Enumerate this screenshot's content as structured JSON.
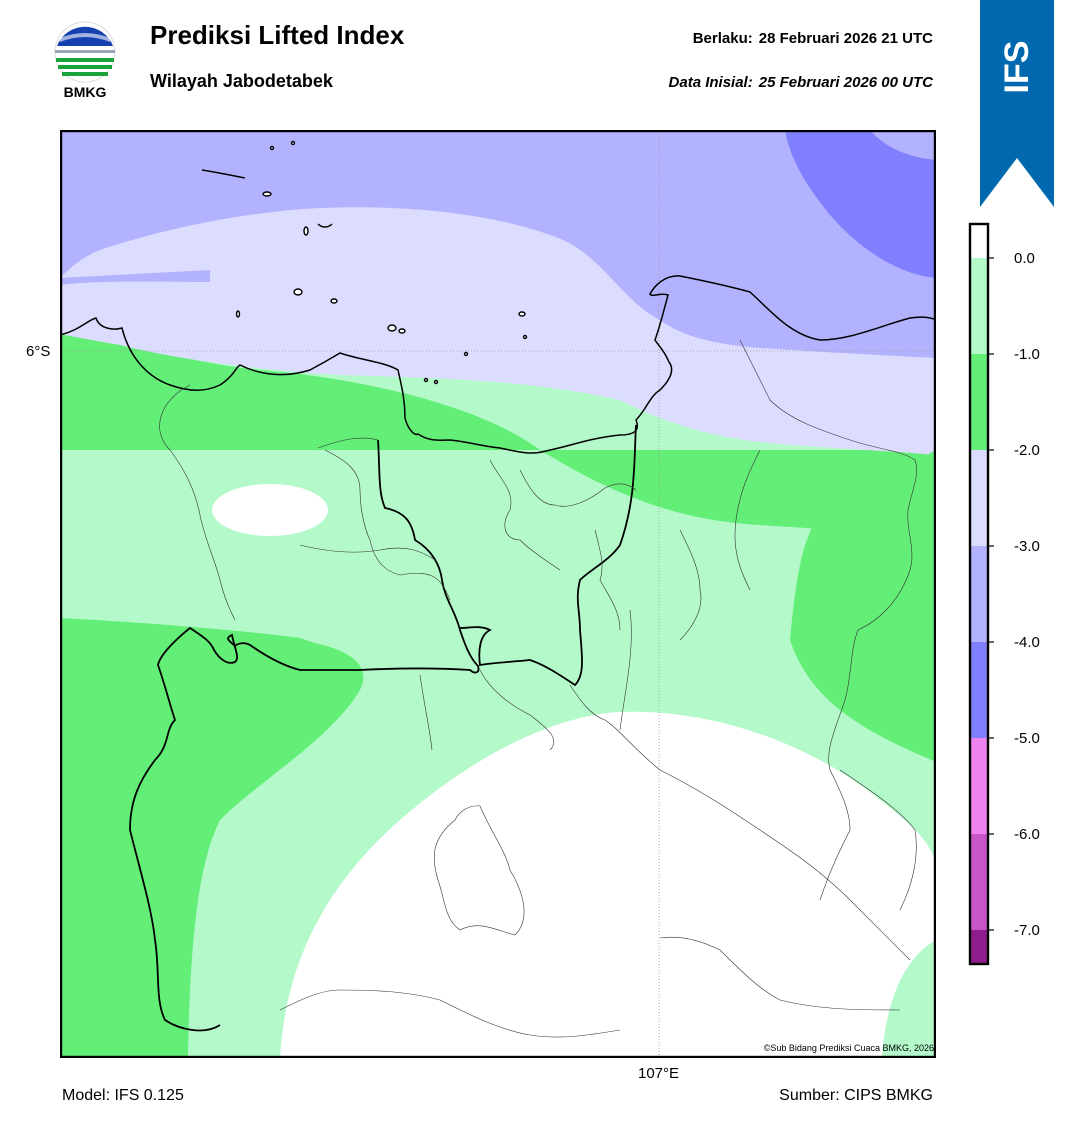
{
  "header": {
    "logo_text": "BMKG",
    "title": "Prediksi Lifted Index",
    "subtitle": "Wilayah Jabodetabek",
    "valid_label": "Berlaku:",
    "valid_value": "28 Februari 2026 21 UTC",
    "init_label": "Data Inisial:",
    "init_value": "25 Februari 2026 00 UTC"
  },
  "ribbon": {
    "label": "IFS",
    "color": "#0068ae"
  },
  "map": {
    "lat_label": "6°S",
    "lon_label": "107°E",
    "copyright": "©Sub Bidang Prediksi Cuaca BMKG, 2026"
  },
  "footer": {
    "model": "Model: IFS 0.125",
    "source": "Sumber: CIPS BMKG"
  },
  "colorbar": {
    "ticks": [
      "0.0",
      "-1.0",
      "-2.0",
      "-3.0",
      "-4.0",
      "-5.0",
      "-6.0",
      "-7.0"
    ],
    "colors": [
      "#b3f9ca",
      "#63ee78",
      "#dcdcfe",
      "#b2b2fe",
      "#8080fe",
      "#ee82ee",
      "#c855c8",
      "#8e1e8e"
    ]
  },
  "palette": {
    "white": "#ffffff",
    "light_green": "#b3f9ca",
    "green": "#63ee78",
    "lavender": "#dcdcfe",
    "light_blue": "#b2b2fe",
    "blue": "#8080fe"
  }
}
